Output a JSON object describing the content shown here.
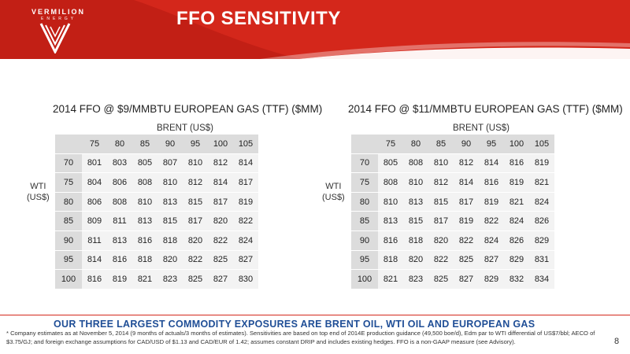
{
  "brand": {
    "name": "VERMILION",
    "sub": "ENERGY"
  },
  "slide_title": "FFO SENSITIVITY",
  "tables": [
    {
      "title": "2014 FFO @ $9/MMBTU EUROPEAN GAS (TTF) ($MM)",
      "col_header": "BRENT (US$)",
      "row_header_line1": "WTI",
      "row_header_line2": "(US$)",
      "columns": [
        "75",
        "80",
        "85",
        "90",
        "95",
        "100",
        "105"
      ],
      "rows": [
        {
          "label": "70",
          "values": [
            "801",
            "803",
            "805",
            "807",
            "810",
            "812",
            "814"
          ]
        },
        {
          "label": "75",
          "values": [
            "804",
            "806",
            "808",
            "810",
            "812",
            "814",
            "817"
          ]
        },
        {
          "label": "80",
          "values": [
            "806",
            "808",
            "810",
            "813",
            "815",
            "817",
            "819"
          ]
        },
        {
          "label": "85",
          "values": [
            "809",
            "811",
            "813",
            "815",
            "817",
            "820",
            "822"
          ]
        },
        {
          "label": "90",
          "values": [
            "811",
            "813",
            "816",
            "818",
            "820",
            "822",
            "824"
          ]
        },
        {
          "label": "95",
          "values": [
            "814",
            "816",
            "818",
            "820",
            "822",
            "825",
            "827"
          ]
        },
        {
          "label": "100",
          "values": [
            "816",
            "819",
            "821",
            "823",
            "825",
            "827",
            "830"
          ]
        }
      ]
    },
    {
      "title": "2014 FFO @ $11/MMBTU EUROPEAN GAS (TTF) ($MM)",
      "col_header": "BRENT (US$)",
      "row_header_line1": "WTI",
      "row_header_line2": "(US$)",
      "columns": [
        "75",
        "80",
        "85",
        "90",
        "95",
        "100",
        "105"
      ],
      "rows": [
        {
          "label": "70",
          "values": [
            "805",
            "808",
            "810",
            "812",
            "814",
            "816",
            "819"
          ]
        },
        {
          "label": "75",
          "values": [
            "808",
            "810",
            "812",
            "814",
            "816",
            "819",
            "821"
          ]
        },
        {
          "label": "80",
          "values": [
            "810",
            "813",
            "815",
            "817",
            "819",
            "821",
            "824"
          ]
        },
        {
          "label": "85",
          "values": [
            "813",
            "815",
            "817",
            "819",
            "822",
            "824",
            "826"
          ]
        },
        {
          "label": "90",
          "values": [
            "816",
            "818",
            "820",
            "822",
            "824",
            "826",
            "829"
          ]
        },
        {
          "label": "95",
          "values": [
            "818",
            "820",
            "822",
            "825",
            "827",
            "829",
            "831"
          ]
        },
        {
          "label": "100",
          "values": [
            "821",
            "823",
            "825",
            "827",
            "829",
            "832",
            "834"
          ]
        }
      ]
    }
  ],
  "tagline": "OUR THREE LARGEST COMMODITY EXPOSURES ARE BRENT OIL, WTI OIL AND EUROPEAN GAS",
  "footnote": "*  Company estimates as at November 5, 2014 (9 months of actuals/3 months of estimates).  Sensitivities are based on top end of 2014E production guidance (49,500 boe/d), Edm par to WTI differential of US$7/bbl; AECO of $3.75/GJ; and foreign exchange assumptions for CAD/USD of $1.13 and CAD/EUR of 1.42; assumes constant DRIP and includes existing hedges.  FFO is a non-GAAP measure (see Advisory).",
  "page_number": "8",
  "colors": {
    "brand_red": "#d4271b",
    "tagline_blue": "#1f4e96",
    "header_cell": "#dcdcdc",
    "body_cell": "#f3f3f3"
  }
}
